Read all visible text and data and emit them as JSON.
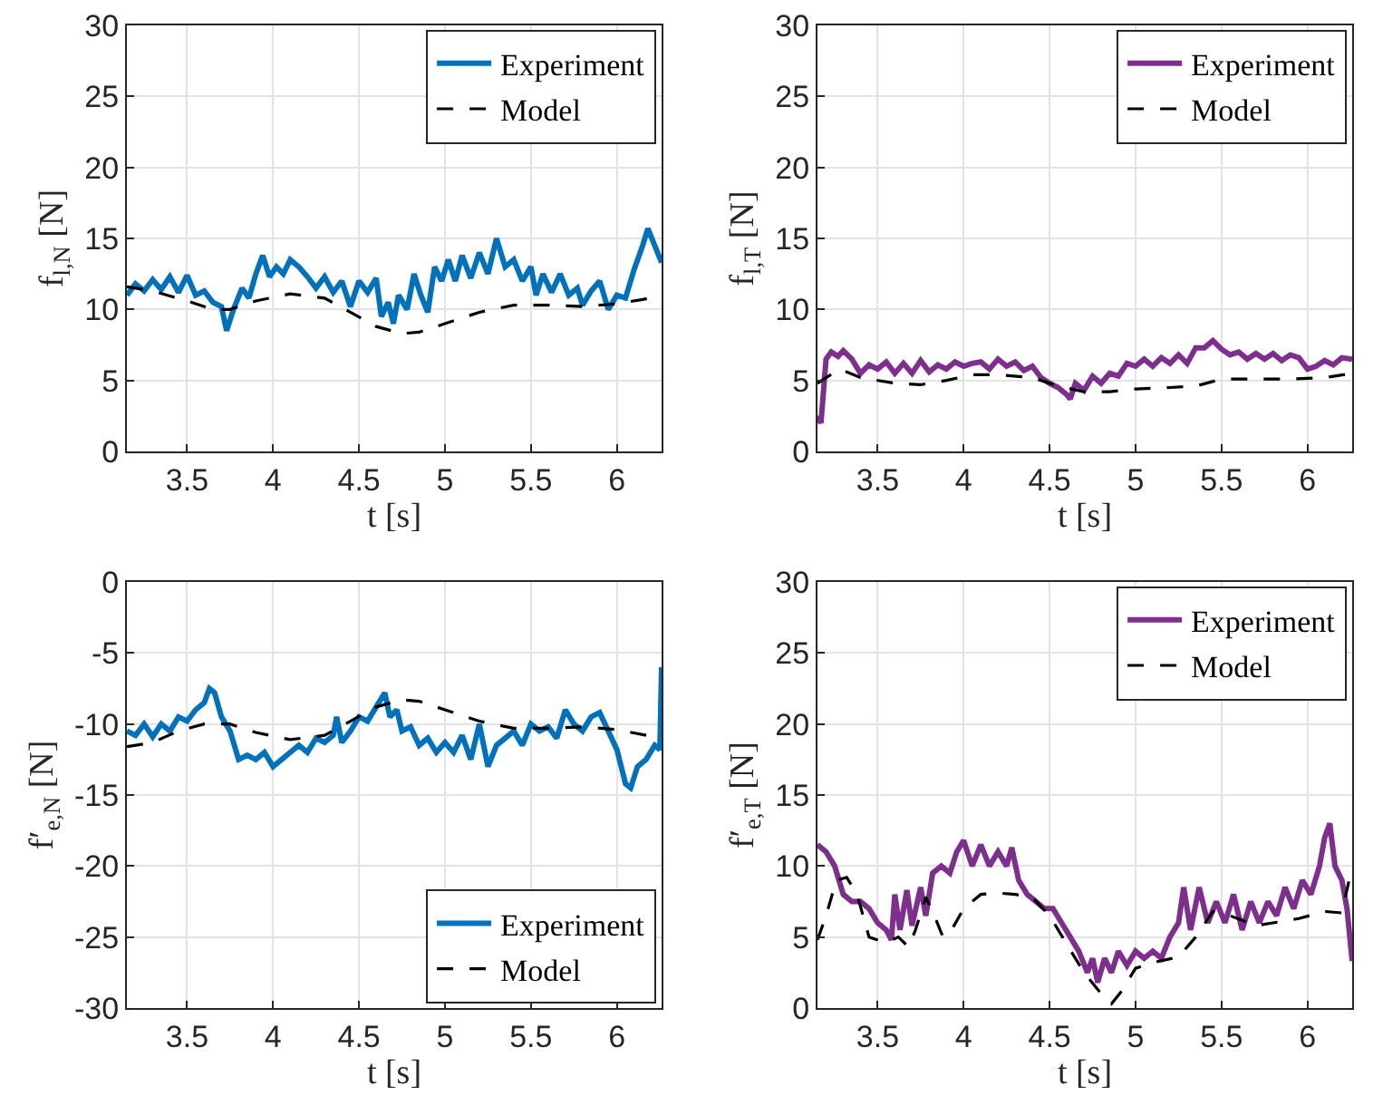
{
  "chart_data": [
    {
      "type": "line",
      "xlabel": "t [s]",
      "ylabel": "f$_{l,N}$ [N]",
      "xlim": [
        3.15,
        6.26
      ],
      "xticks": [
        3.5,
        4,
        4.5,
        5,
        5.5,
        6
      ],
      "ylim": [
        0,
        30
      ],
      "yticks": [
        0,
        5,
        10,
        15,
        20,
        25,
        30
      ],
      "grid": true,
      "legend": "top right",
      "series": [
        {
          "name": "Experiment",
          "color": "#0072bd",
          "line_style": "solid",
          "x": [
            3.15,
            3.2,
            3.25,
            3.3,
            3.35,
            3.4,
            3.45,
            3.5,
            3.55,
            3.6,
            3.65,
            3.7,
            3.73,
            3.77,
            3.82,
            3.86,
            3.9,
            3.94,
            3.98,
            4.02,
            4.06,
            4.1,
            4.15,
            4.2,
            4.25,
            4.3,
            4.35,
            4.4,
            4.45,
            4.5,
            4.55,
            4.6,
            4.63,
            4.67,
            4.7,
            4.73,
            4.78,
            4.82,
            4.86,
            4.9,
            4.94,
            4.98,
            5.02,
            5.06,
            5.1,
            5.15,
            5.2,
            5.25,
            5.3,
            5.35,
            5.4,
            5.45,
            5.5,
            5.53,
            5.57,
            5.62,
            5.67,
            5.72,
            5.77,
            5.8,
            5.85,
            5.9,
            5.95,
            6,
            6.05,
            6.1,
            6.15,
            6.18,
            6.22,
            6.26
          ],
          "values": [
            11,
            11.8,
            11.3,
            12.1,
            11.4,
            12.3,
            11.2,
            12.4,
            11,
            11.3,
            10.5,
            10.2,
            8.5,
            10,
            11.5,
            10.8,
            12.5,
            13.8,
            12.3,
            13,
            12.5,
            13.5,
            13,
            12.3,
            11.5,
            12.3,
            11.2,
            12,
            10.2,
            12,
            11.2,
            12.2,
            9.5,
            10.5,
            9,
            11,
            10,
            12.5,
            11,
            9.8,
            13,
            12,
            13.5,
            12,
            13.8,
            12.2,
            14,
            12.5,
            15,
            13,
            13.5,
            12,
            13,
            11,
            12.5,
            11.2,
            12.5,
            11,
            11.5,
            10.3,
            11.3,
            12,
            10,
            11,
            10.8,
            12.8,
            14.5,
            15.7,
            14.5,
            13.3
          ]
        },
        {
          "name": "Model",
          "color": "#000000",
          "line_style": "dashed",
          "x": [
            3.15,
            3.3,
            3.5,
            3.65,
            3.75,
            3.9,
            4.1,
            4.3,
            4.45,
            4.6,
            4.75,
            4.85,
            5,
            5.2,
            5.4,
            5.6,
            5.8,
            6,
            6.15,
            6.26
          ],
          "values": [
            11.6,
            11.3,
            10.6,
            10,
            10,
            10.6,
            11.1,
            10.8,
            9.8,
            8.8,
            8.3,
            8.4,
            9,
            9.8,
            10.3,
            10.3,
            10.2,
            10.4,
            10.7,
            11
          ]
        }
      ]
    },
    {
      "type": "line",
      "xlabel": "t [s]",
      "ylabel": "f$_{l,T}$ [N]",
      "xlim": [
        3.15,
        6.26
      ],
      "xticks": [
        3.5,
        4,
        4.5,
        5,
        5.5,
        6
      ],
      "ylim": [
        0,
        30
      ],
      "yticks": [
        0,
        5,
        10,
        15,
        20,
        25,
        30
      ],
      "grid": true,
      "legend": "top right",
      "series": [
        {
          "name": "Experiment",
          "color": "#7e2f8e",
          "line_style": "solid",
          "x": [
            3.15,
            3.17,
            3.19,
            3.2,
            3.23,
            3.27,
            3.3,
            3.35,
            3.4,
            3.45,
            3.5,
            3.55,
            3.6,
            3.65,
            3.7,
            3.75,
            3.8,
            3.85,
            3.9,
            3.95,
            4,
            4.05,
            4.1,
            4.15,
            4.2,
            4.25,
            4.3,
            4.35,
            4.4,
            4.45,
            4.5,
            4.55,
            4.6,
            4.62,
            4.65,
            4.7,
            4.75,
            4.8,
            4.85,
            4.9,
            4.95,
            5,
            5.05,
            5.1,
            5.15,
            5.2,
            5.25,
            5.3,
            5.35,
            5.4,
            5.45,
            5.5,
            5.55,
            5.6,
            5.65,
            5.7,
            5.75,
            5.8,
            5.85,
            5.9,
            5.95,
            6,
            6.05,
            6.1,
            6.15,
            6.2,
            6.26
          ],
          "values": [
            2.5,
            2,
            5,
            6.5,
            7,
            6.7,
            7.1,
            6.5,
            5.5,
            6.1,
            5.8,
            6.3,
            5.5,
            6.2,
            5.5,
            6.4,
            5.6,
            6.1,
            5.8,
            6.3,
            6,
            6.2,
            6.3,
            5.8,
            6.5,
            6,
            6.3,
            5.7,
            6,
            5.2,
            4.8,
            4.5,
            4,
            3.7,
            4.8,
            4.3,
            5.3,
            4.8,
            5.5,
            5.3,
            6.2,
            6,
            6.5,
            6,
            6.6,
            6.2,
            6.8,
            6.2,
            7.3,
            7.3,
            7.8,
            7.2,
            6.8,
            7,
            6.5,
            6.9,
            6.5,
            6.9,
            6.4,
            6.8,
            6.6,
            5.8,
            6,
            6.4,
            6.1,
            6.6,
            6.5
          ]
        },
        {
          "name": "Model",
          "color": "#000000",
          "line_style": "dashed",
          "x": [
            3.15,
            3.2,
            3.28,
            3.4,
            3.6,
            3.75,
            3.9,
            4.05,
            4.2,
            4.4,
            4.55,
            4.7,
            4.85,
            5,
            5.2,
            5.35,
            5.5,
            5.7,
            5.9,
            6.1,
            6.26
          ],
          "values": [
            4.8,
            5.2,
            5.8,
            5.2,
            4.8,
            4.7,
            5,
            5.4,
            5.4,
            5.2,
            4.6,
            4.2,
            4.2,
            4.4,
            4.5,
            4.6,
            5.1,
            5.1,
            5.1,
            5.2,
            5.5
          ]
        }
      ]
    },
    {
      "type": "line",
      "xlabel": "t [s]",
      "ylabel": "f′$_{e,N}$ [N]",
      "xlim": [
        3.15,
        6.26
      ],
      "xticks": [
        3.5,
        4,
        4.5,
        5,
        5.5,
        6
      ],
      "ylim": [
        -30,
        0
      ],
      "yticks": [
        -30,
        -25,
        -20,
        -15,
        -10,
        -5,
        0
      ],
      "grid": true,
      "legend": "bottom right",
      "series": [
        {
          "name": "Experiment",
          "color": "#0072bd",
          "line_style": "solid",
          "x": [
            3.15,
            3.2,
            3.25,
            3.3,
            3.35,
            3.4,
            3.45,
            3.5,
            3.55,
            3.6,
            3.63,
            3.66,
            3.7,
            3.75,
            3.8,
            3.85,
            3.9,
            3.95,
            4,
            4.05,
            4.1,
            4.15,
            4.2,
            4.25,
            4.3,
            4.35,
            4.37,
            4.4,
            4.45,
            4.5,
            4.55,
            4.6,
            4.65,
            4.68,
            4.72,
            4.75,
            4.8,
            4.85,
            4.9,
            4.95,
            5,
            5.05,
            5.1,
            5.15,
            5.2,
            5.25,
            5.3,
            5.35,
            5.4,
            5.45,
            5.5,
            5.55,
            5.6,
            5.65,
            5.7,
            5.75,
            5.8,
            5.85,
            5.9,
            5.95,
            6,
            6.05,
            6.08,
            6.12,
            6.17,
            6.22,
            6.25,
            6.26
          ],
          "values": [
            -10.5,
            -10.8,
            -10,
            -10.9,
            -10,
            -10.5,
            -9.5,
            -9.8,
            -9,
            -8.5,
            -7.5,
            -7.8,
            -9.5,
            -10.5,
            -12.5,
            -12.2,
            -12.5,
            -12,
            -13,
            -12.5,
            -12,
            -11.5,
            -12,
            -11,
            -11.3,
            -10.8,
            -9.5,
            -11.3,
            -10.5,
            -9.5,
            -9.8,
            -8.8,
            -7.8,
            -9.5,
            -9,
            -10.5,
            -10.2,
            -11.5,
            -11,
            -12,
            -11.3,
            -12,
            -10.8,
            -12.5,
            -10,
            -13,
            -11.5,
            -11,
            -10.5,
            -11.5,
            -10,
            -10.5,
            -10.2,
            -11,
            -9,
            -10,
            -10.5,
            -9.5,
            -9.2,
            -10.5,
            -11.8,
            -14.2,
            -14.5,
            -13,
            -12.5,
            -11.5,
            -11.8,
            -6
          ]
        },
        {
          "name": "Model",
          "color": "#000000",
          "line_style": "dashed",
          "x": [
            3.15,
            3.3,
            3.45,
            3.6,
            3.75,
            3.9,
            4.1,
            4.3,
            4.45,
            4.6,
            4.75,
            4.85,
            5,
            5.2,
            5.4,
            5.6,
            5.8,
            6,
            6.26
          ],
          "values": [
            -11.6,
            -11.3,
            -10.5,
            -10,
            -10,
            -10.6,
            -11.1,
            -10.8,
            -9.8,
            -8.8,
            -8.3,
            -8.4,
            -9,
            -9.8,
            -10.3,
            -10.3,
            -10.2,
            -10.4,
            -11
          ]
        }
      ]
    },
    {
      "type": "line",
      "xlabel": "t [s]",
      "ylabel": "f′$_{e,T}$ [N]",
      "xlim": [
        3.15,
        6.26
      ],
      "xticks": [
        3.5,
        4,
        4.5,
        5,
        5.5,
        6
      ],
      "ylim": [
        0,
        30
      ],
      "yticks": [
        0,
        5,
        10,
        15,
        20,
        25,
        30
      ],
      "grid": true,
      "legend": "top right",
      "series": [
        {
          "name": "Experiment",
          "color": "#7e2f8e",
          "line_style": "solid",
          "x": [
            3.15,
            3.2,
            3.25,
            3.3,
            3.35,
            3.4,
            3.45,
            3.5,
            3.55,
            3.58,
            3.6,
            3.63,
            3.67,
            3.7,
            3.75,
            3.78,
            3.82,
            3.87,
            3.92,
            3.96,
            4,
            4.05,
            4.1,
            4.15,
            4.2,
            4.25,
            4.28,
            4.32,
            4.37,
            4.42,
            4.47,
            4.52,
            4.57,
            4.62,
            4.67,
            4.72,
            4.75,
            4.78,
            4.82,
            4.86,
            4.9,
            4.95,
            5,
            5.05,
            5.1,
            5.15,
            5.2,
            5.25,
            5.28,
            5.32,
            5.37,
            5.42,
            5.47,
            5.52,
            5.57,
            5.62,
            5.67,
            5.72,
            5.77,
            5.82,
            5.87,
            5.92,
            5.97,
            6.02,
            6.07,
            6.1,
            6.13,
            6.16,
            6.2,
            6.23,
            6.26
          ],
          "values": [
            11.5,
            11,
            10,
            8,
            7.5,
            7.5,
            7,
            6,
            5.5,
            4.8,
            8,
            5.5,
            8.3,
            5.8,
            8.5,
            6.5,
            9.5,
            10,
            9.5,
            11,
            11.8,
            10,
            11.5,
            10,
            11,
            10,
            11.3,
            9,
            8,
            7.5,
            7,
            7,
            6,
            5,
            4,
            2.5,
            3.5,
            1.8,
            3.5,
            2.5,
            4,
            3,
            4,
            3.5,
            4,
            3.5,
            5,
            6,
            8.5,
            5.5,
            8.5,
            6,
            7.5,
            6,
            8,
            5.5,
            7.5,
            6,
            7.5,
            6.5,
            8.5,
            7,
            9,
            8,
            10,
            12,
            13,
            10,
            9,
            7,
            3.3
          ]
        },
        {
          "name": "Model",
          "color": "#000000",
          "line_style": "dashed",
          "x": [
            3.15,
            3.2,
            3.26,
            3.32,
            3.38,
            3.45,
            3.55,
            3.62,
            3.68,
            3.72,
            3.78,
            3.83,
            3.88,
            3.93,
            4,
            4.1,
            4.2,
            4.3,
            4.4,
            4.5,
            4.6,
            4.7,
            4.8,
            4.86,
            4.92,
            5,
            5.1,
            5.25,
            5.35,
            5.45,
            5.55,
            5.7,
            5.8,
            5.95,
            6.1,
            6.2,
            6.26
          ],
          "values": [
            4.8,
            6.5,
            9,
            9.2,
            8,
            5,
            4.6,
            5,
            4.3,
            5.5,
            7.8,
            6.5,
            5,
            5.5,
            7,
            8,
            8.1,
            8,
            7.8,
            6.5,
            4.5,
            2.5,
            1,
            0.3,
            1.2,
            2.8,
            3.2,
            3.6,
            5,
            6.8,
            6.5,
            5.8,
            6,
            6.3,
            6.8,
            6.7,
            10
          ]
        }
      ]
    }
  ]
}
